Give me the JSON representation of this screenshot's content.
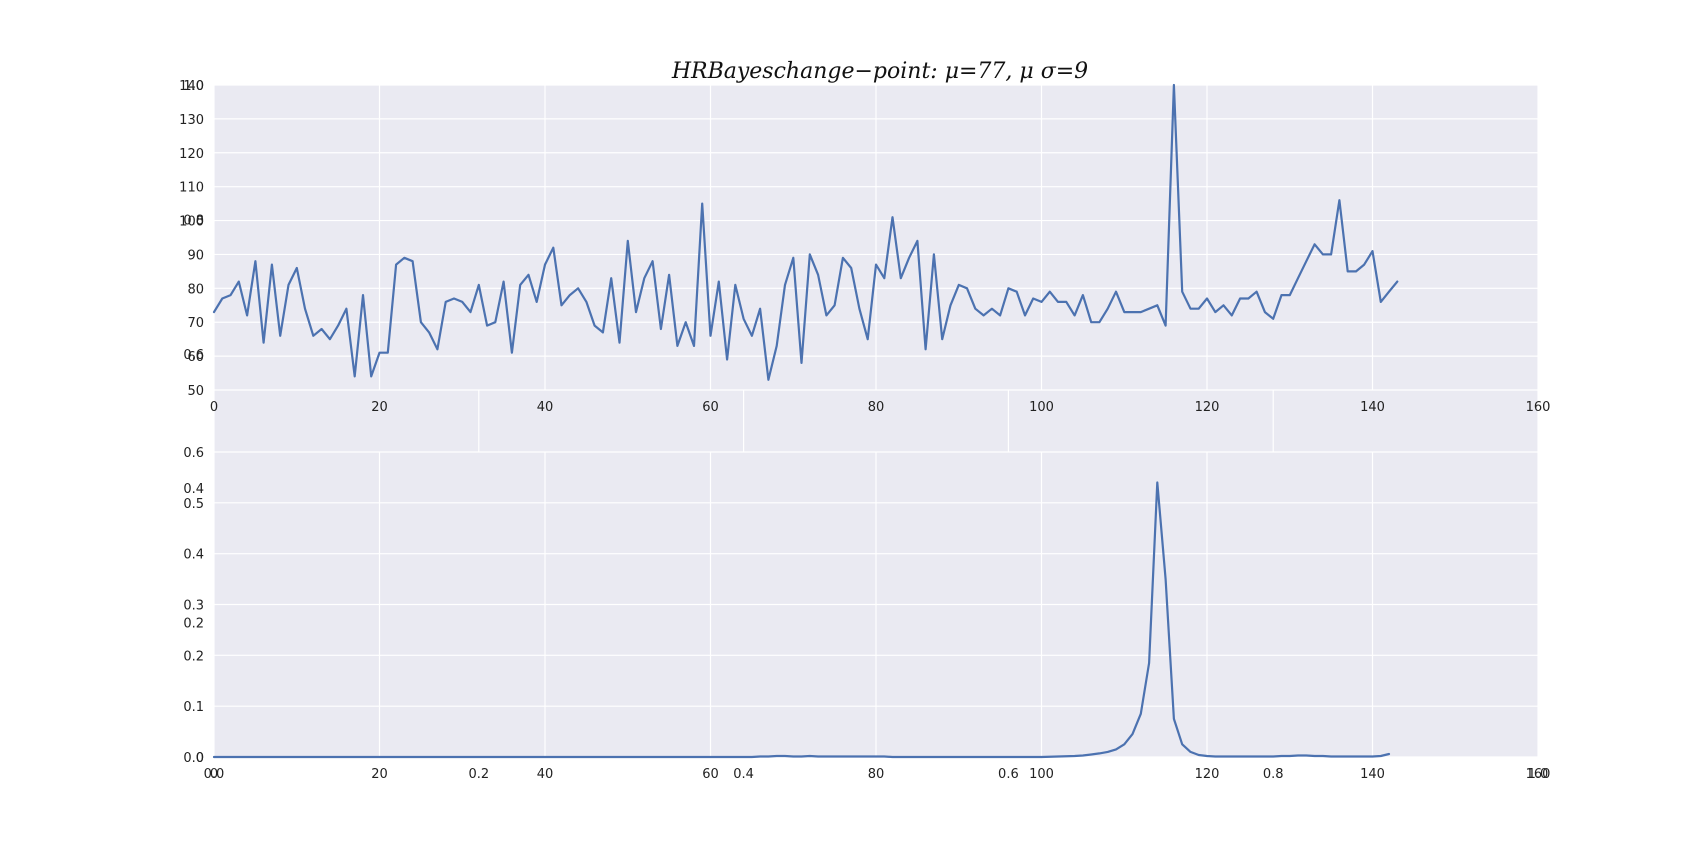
{
  "figure": {
    "title": "HRBayeschange−point:  μ=77, μ  σ=9"
  },
  "colors": {
    "panel_bg": "#eaeaf2",
    "grid": "#ffffff",
    "line": "#4c72b0",
    "text": "#222222"
  },
  "chart_data": [
    {
      "type": "line",
      "xlim": [
        0,
        160
      ],
      "ylim": [
        50,
        140
      ],
      "grid": true,
      "xticks": [
        0,
        20,
        40,
        60,
        80,
        100,
        120,
        140,
        160
      ],
      "yticks": [
        50,
        60,
        70,
        80,
        90,
        100,
        110,
        120,
        130,
        140
      ],
      "series": [
        {
          "x": [
            0,
            1,
            2,
            3,
            4,
            5,
            6,
            7,
            8,
            9,
            10,
            11,
            12,
            13,
            14,
            15,
            16,
            17,
            18,
            19,
            20,
            21,
            22,
            23,
            24,
            25,
            26,
            27,
            28,
            29,
            30,
            31,
            32,
            33,
            34,
            35,
            36,
            37,
            38,
            39,
            40,
            41,
            42,
            43,
            44,
            45,
            46,
            47,
            48,
            49,
            50,
            51,
            52,
            53,
            54,
            55,
            56,
            57,
            58,
            59,
            60,
            61,
            62,
            63,
            64,
            65,
            66,
            67,
            68,
            69,
            70,
            71,
            72,
            73,
            74,
            75,
            76,
            77,
            78,
            79,
            80,
            81,
            82,
            83,
            84,
            85,
            86,
            87,
            88,
            89,
            90,
            91,
            92,
            93,
            94,
            95,
            96,
            97,
            98,
            99,
            100,
            101,
            102,
            103,
            104,
            105,
            106,
            107,
            108,
            109,
            110,
            111,
            112,
            113,
            114,
            115,
            116,
            117,
            118,
            119,
            120,
            121,
            122,
            123,
            124,
            125,
            126,
            127,
            128,
            129,
            130,
            131,
            132,
            133,
            134,
            135,
            136,
            137,
            138,
            139,
            140,
            141,
            142,
            143
          ],
          "y": [
            73,
            77,
            78,
            82,
            72,
            88,
            64,
            87,
            66,
            81,
            86,
            74,
            66,
            68,
            65,
            69,
            74,
            54,
            78,
            54,
            61,
            61,
            87,
            89,
            88,
            70,
            67,
            62,
            76,
            77,
            76,
            73,
            81,
            69,
            70,
            82,
            61,
            81,
            84,
            76,
            87,
            92,
            75,
            78,
            80,
            76,
            69,
            67,
            83,
            64,
            94,
            73,
            83,
            88,
            68,
            84,
            63,
            70,
            63,
            105,
            66,
            82,
            59,
            81,
            71,
            66,
            74,
            53,
            63,
            81,
            89,
            58,
            90,
            84,
            72,
            75,
            89,
            86,
            74,
            65,
            87,
            83,
            101,
            83,
            89,
            94,
            62,
            90,
            65,
            75,
            81,
            80,
            74,
            72,
            74,
            72,
            80,
            79,
            72,
            77,
            76,
            79,
            76,
            76,
            72,
            78,
            70,
            70,
            74,
            79,
            73,
            73,
            73,
            74,
            75,
            69,
            140,
            79,
            74,
            74,
            77,
            73,
            75,
            72,
            77,
            77,
            79,
            73,
            71,
            78,
            78,
            83,
            88,
            93,
            90,
            90,
            106,
            85,
            85,
            87,
            91,
            76,
            79,
            82
          ]
        }
      ]
    },
    {
      "type": "line",
      "xlim": [
        0,
        160
      ],
      "ylim": [
        0,
        0.6
      ],
      "grid": true,
      "xticks": [
        0,
        20,
        40,
        60,
        80,
        100,
        120,
        140,
        160
      ],
      "yticks": [
        0.0,
        0.1,
        0.2,
        0.3,
        0.4,
        0.5,
        0.6
      ],
      "series": [
        {
          "x": [
            0,
            5,
            10,
            15,
            20,
            25,
            30,
            35,
            40,
            45,
            50,
            55,
            60,
            65,
            66,
            67,
            68,
            69,
            70,
            71,
            72,
            73,
            74,
            75,
            76,
            77,
            78,
            79,
            80,
            81,
            82,
            83,
            84,
            85,
            90,
            95,
            100,
            102,
            104,
            105,
            106,
            107,
            108,
            109,
            110,
            111,
            112,
            113,
            114,
            115,
            116,
            117,
            118,
            119,
            120,
            121,
            122,
            123,
            124,
            125,
            126,
            127,
            128,
            129,
            130,
            131,
            132,
            133,
            134,
            135,
            136,
            137,
            138,
            139,
            140,
            141,
            142
          ],
          "y": [
            0,
            0,
            0,
            0,
            0,
            0,
            0,
            0,
            0,
            0,
            0,
            0,
            0,
            0,
            0.001,
            0.001,
            0.002,
            0.002,
            0.001,
            0.001,
            0.002,
            0.001,
            0.001,
            0.001,
            0.001,
            0.001,
            0.001,
            0.001,
            0.001,
            0.001,
            0,
            0,
            0,
            0,
            0,
            0,
            0,
            0.001,
            0.002,
            0.003,
            0.005,
            0.007,
            0.01,
            0.015,
            0.025,
            0.045,
            0.085,
            0.185,
            0.54,
            0.35,
            0.075,
            0.025,
            0.01,
            0.004,
            0.002,
            0.001,
            0.001,
            0.001,
            0.001,
            0.001,
            0.001,
            0.001,
            0.001,
            0.002,
            0.002,
            0.003,
            0.003,
            0.002,
            0.002,
            0.001,
            0.001,
            0.001,
            0.001,
            0.001,
            0.001,
            0.002,
            0.006
          ]
        }
      ]
    }
  ],
  "overlay_axes": {
    "xlim": [
      0,
      1
    ],
    "ylim": [
      0,
      1
    ],
    "xticks": [
      "0.0",
      "0.2",
      "0.4",
      "0.6",
      "0.8",
      "1.0"
    ],
    "yticks": [
      "0.0",
      "0.2",
      "0.4",
      "0.6",
      "0.8",
      "1.0"
    ]
  }
}
